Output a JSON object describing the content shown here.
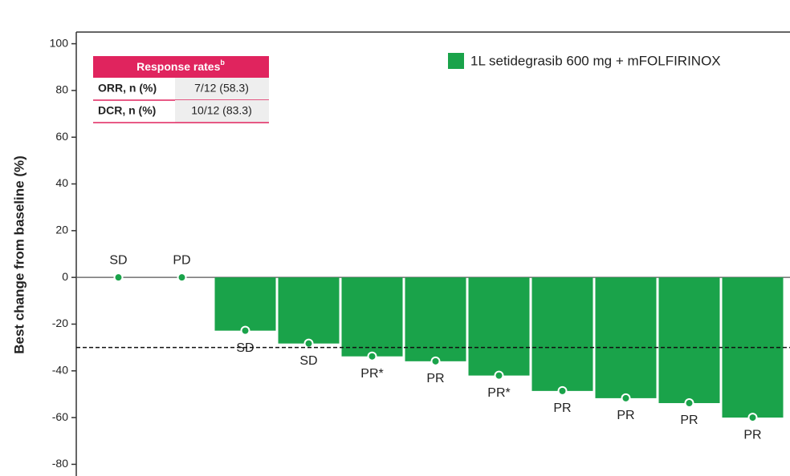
{
  "chart_data": {
    "type": "bar",
    "ylabel": "Best change from baseline (%)",
    "series": [
      {
        "name": "1L setidegrasib 600 mg + mFOLFIRINOX",
        "color": "#1aa34a",
        "values": [
          0,
          0,
          -22.8,
          -28.3,
          -33.8,
          -35.9,
          -42,
          -48.6,
          -51.7,
          -53.8,
          -60
        ]
      }
    ],
    "responses": [
      "SD",
      "PD",
      "SD",
      "SD",
      "PR*",
      "PR",
      "PR*",
      "PR",
      "PR",
      "PR",
      "PR"
    ],
    "threshold": -30,
    "ylim": [
      -85,
      105
    ],
    "yticks": [
      -80,
      -60,
      -40,
      -20,
      0,
      20,
      40,
      60,
      80,
      100
    ],
    "table": {
      "title": "Response rates",
      "title_sup": "b",
      "rows": [
        [
          "ORR, n (%)",
          "7/12 (58.3)"
        ],
        [
          "DCR, n (%)",
          "10/12 (83.3)"
        ]
      ]
    }
  }
}
